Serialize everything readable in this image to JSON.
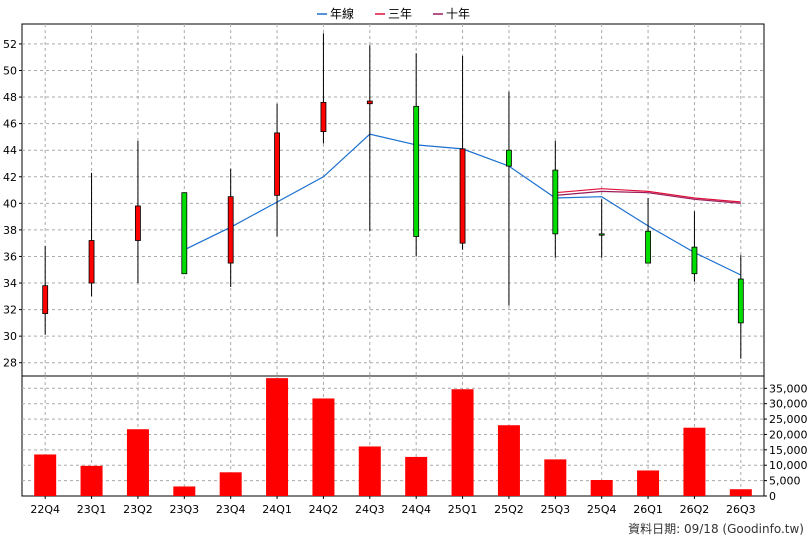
{
  "chart_data": {
    "type": "candlestick+bar",
    "title": "",
    "legend": {
      "placement": "top-center",
      "items": [
        {
          "label": "年線",
          "color": "#1a6fd1"
        },
        {
          "label": "三年",
          "color": "#e0103a"
        },
        {
          "label": "十年",
          "color": "#9b1c5c"
        }
      ]
    },
    "categories": [
      "22Q4",
      "23Q1",
      "23Q2",
      "23Q3",
      "23Q4",
      "24Q1",
      "24Q2",
      "24Q3",
      "24Q4",
      "25Q1",
      "25Q2",
      "25Q3",
      "25Q4",
      "26Q1",
      "26Q2",
      "26Q3"
    ],
    "price": {
      "ylim": [
        27,
        53.5
      ],
      "ticks": [
        28,
        30,
        32,
        34,
        36,
        38,
        40,
        42,
        44,
        46,
        48,
        50,
        52
      ],
      "ohlc": [
        {
          "open": 31.7,
          "high": 36.8,
          "low": 30.1,
          "close": 33.8
        },
        {
          "open": 34.0,
          "high": 42.3,
          "low": 33.0,
          "close": 37.2
        },
        {
          "open": 37.2,
          "high": 44.7,
          "low": 34.0,
          "close": 39.8
        },
        {
          "open": 40.8,
          "high": 40.8,
          "low": 34.7,
          "close": 34.7
        },
        {
          "open": 35.5,
          "high": 42.6,
          "low": 33.7,
          "close": 40.5
        },
        {
          "open": 40.6,
          "high": 47.5,
          "low": 37.5,
          "close": 45.3
        },
        {
          "open": 45.4,
          "high": 52.8,
          "low": 44.5,
          "close": 47.6
        },
        {
          "open": 47.5,
          "high": 51.9,
          "low": 37.9,
          "close": 47.7
        },
        {
          "open": 47.3,
          "high": 51.3,
          "low": 36.0,
          "close": 37.5
        },
        {
          "open": 37.0,
          "high": 51.1,
          "low": 36.5,
          "close": 44.1
        },
        {
          "open": 44.0,
          "high": 48.4,
          "low": 32.3,
          "close": 42.8
        },
        {
          "open": 42.5,
          "high": 44.7,
          "low": 35.9,
          "close": 37.7
        },
        {
          "open": 37.7,
          "high": 40.3,
          "low": 35.9,
          "close": 37.6
        },
        {
          "open": 37.9,
          "high": 40.4,
          "low": 35.5,
          "close": 35.5
        },
        {
          "open": 36.7,
          "high": 39.4,
          "low": 34.1,
          "close": 34.7
        },
        {
          "open": 34.3,
          "high": 36.1,
          "low": 28.3,
          "close": 31.0
        }
      ],
      "series": [
        {
          "name": "年線",
          "color": "#1a6fd1",
          "values": [
            null,
            null,
            null,
            36.5,
            38.2,
            40.1,
            42.0,
            45.2,
            44.4,
            44.1,
            42.8,
            40.4,
            40.5,
            38.3,
            36.3,
            34.6
          ]
        },
        {
          "name": "三年",
          "color": "#e0103a",
          "values": [
            null,
            null,
            null,
            null,
            null,
            null,
            null,
            null,
            null,
            null,
            null,
            40.8,
            41.1,
            40.9,
            40.4,
            40.1
          ]
        },
        {
          "name": "十年",
          "color": "#9b1c5c",
          "values": [
            null,
            null,
            null,
            null,
            null,
            null,
            null,
            null,
            null,
            null,
            null,
            40.6,
            40.9,
            40.8,
            40.3,
            40.0
          ]
        }
      ]
    },
    "volume": {
      "ylim": [
        0,
        39000
      ],
      "ticks": [
        0,
        5000,
        10000,
        15000,
        20000,
        25000,
        30000,
        35000
      ],
      "tick_labels": [
        "0",
        "5,000",
        "10,000",
        "15,000",
        "20,000",
        "25,000",
        "30,000",
        "35,000"
      ],
      "values": [
        13500,
        9800,
        21700,
        3100,
        7700,
        38300,
        31700,
        16100,
        12700,
        34700,
        23000,
        11900,
        5200,
        8300,
        22200,
        2200
      ],
      "color": "#ff0000"
    },
    "grid": true,
    "colors": {
      "up": "#ff0000",
      "down": "#00dd00",
      "wick": "#000000",
      "grid": "#aaaaaa"
    }
  },
  "footer": {
    "text": "資料日期: 09/18  (Goodinfo.tw)"
  }
}
